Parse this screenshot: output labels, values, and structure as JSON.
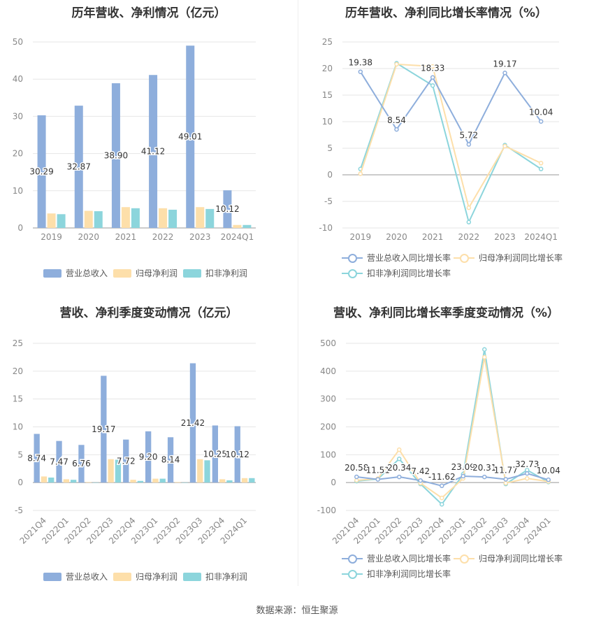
{
  "footer": {
    "source": "数据来源：恒生聚源"
  },
  "chart_data": [
    {
      "id": "p1",
      "type": "bar",
      "title": "历年营收、净利情况（亿元）",
      "categories": [
        "2019",
        "2020",
        "2021",
        "2022",
        "2023",
        "2024Q1"
      ],
      "ylim": [
        0,
        50
      ],
      "yticks": [
        0,
        10,
        20,
        30,
        40,
        50
      ],
      "grid": true,
      "legend": "bottom",
      "rotate_x": false,
      "series": [
        {
          "name": "营业总收入",
          "color": "#8eaedc",
          "values": [
            30.29,
            32.87,
            38.9,
            41.12,
            49.01,
            10.12
          ],
          "labels": [
            "30.29",
            "32.87",
            "38.90",
            "41.12",
            "49.01",
            "10.12"
          ]
        },
        {
          "name": "归母净利润",
          "color": "#fddfaa",
          "values": [
            3.9,
            4.6,
            5.6,
            5.3,
            5.6,
            0.8
          ]
        },
        {
          "name": "扣非净利润",
          "color": "#8cd5dc",
          "values": [
            3.7,
            4.5,
            5.3,
            4.9,
            5.1,
            0.8
          ]
        }
      ]
    },
    {
      "id": "p2",
      "type": "line",
      "title": "历年营收、净利同比增长率情况（%）",
      "categories": [
        "2019",
        "2020",
        "2021",
        "2022",
        "2023",
        "2024Q1"
      ],
      "ylim": [
        -10,
        25
      ],
      "yticks": [
        -10,
        -5,
        0,
        5,
        10,
        15,
        20,
        25
      ],
      "grid": true,
      "legend": "bottom",
      "rotate_x": false,
      "series": [
        {
          "name": "营业总收入同比增长率",
          "color": "#8eaedc",
          "values": [
            19.38,
            8.54,
            18.33,
            5.72,
            19.17,
            10.04
          ],
          "labels": [
            "19.38",
            "8.54",
            "18.33",
            "5.72",
            "19.17",
            "10.04"
          ]
        },
        {
          "name": "归母净利润同比增长率",
          "color": "#fddfaa",
          "values": [
            0.2,
            20.8,
            20.4,
            -6.2,
            5.4,
            2.2
          ]
        },
        {
          "name": "扣非净利润同比增长率",
          "color": "#8cd5dc",
          "values": [
            1.1,
            21.0,
            16.8,
            -8.9,
            5.6,
            1.1
          ]
        }
      ]
    },
    {
      "id": "p3",
      "type": "bar",
      "title": "营收、净利季度变动情况（亿元）",
      "categories": [
        "2021Q4",
        "2022Q1",
        "2022Q2",
        "2022Q3",
        "2022Q4",
        "2023Q1",
        "2023Q2",
        "2023Q3",
        "2023Q4",
        "2024Q1"
      ],
      "ylim": [
        -5,
        25
      ],
      "yticks": [
        -5,
        0,
        5,
        10,
        15,
        20,
        25
      ],
      "grid": true,
      "legend": "bottom",
      "rotate_x": true,
      "series": [
        {
          "name": "营业总收入",
          "color": "#8eaedc",
          "values": [
            8.74,
            7.47,
            6.76,
            19.17,
            7.72,
            9.2,
            8.14,
            21.42,
            10.25,
            10.12
          ],
          "labels": [
            "8.74",
            "7.47",
            "6.76",
            "19.17",
            "7.72",
            "9.20",
            "8.14",
            "21.42",
            "10.25",
            "10.12"
          ]
        },
        {
          "name": "归母净利润",
          "color": "#fddfaa",
          "values": [
            1.1,
            0.6,
            0.1,
            4.2,
            0.5,
            0.7,
            0.1,
            4.2,
            0.6,
            0.8
          ]
        },
        {
          "name": "扣非净利润",
          "color": "#8cd5dc",
          "values": [
            0.9,
            0.5,
            0.0,
            4.1,
            0.3,
            0.7,
            0.0,
            4.0,
            0.4,
            0.8
          ]
        }
      ]
    },
    {
      "id": "p4",
      "type": "line",
      "title": "营收、净利同比增长率季度变动情况（%）",
      "categories": [
        "2021Q4",
        "2022Q1",
        "2022Q2",
        "2022Q3",
        "2022Q4",
        "2023Q1",
        "2023Q2",
        "2023Q3",
        "2023Q4",
        "2024Q1"
      ],
      "ylim": [
        -100,
        500
      ],
      "yticks": [
        -100,
        0,
        100,
        200,
        300,
        400,
        500
      ],
      "grid": true,
      "legend": "bottom",
      "rotate_x": true,
      "series": [
        {
          "name": "营业总收入同比增长率",
          "color": "#8eaedc",
          "values": [
            20.58,
            11.51,
            20.34,
            7.42,
            -11.62,
            23.09,
            20.31,
            11.77,
            32.73,
            10.04
          ],
          "labels": [
            "20.58",
            "11.51",
            "20.34",
            "7.42",
            "-11.62",
            "23.09",
            "20.31",
            "11.77",
            "32.73",
            "10.04"
          ]
        },
        {
          "name": "归母净利润同比增长率",
          "color": "#fddfaa",
          "values": [
            8,
            14,
            118,
            -2,
            -55,
            15,
            450,
            -2,
            15,
            4
          ]
        },
        {
          "name": "扣非净利润同比增长率",
          "color": "#8cd5dc",
          "values": [
            5,
            13,
            85,
            -5,
            -78,
            30,
            478,
            -5,
            45,
            2
          ]
        }
      ]
    }
  ]
}
